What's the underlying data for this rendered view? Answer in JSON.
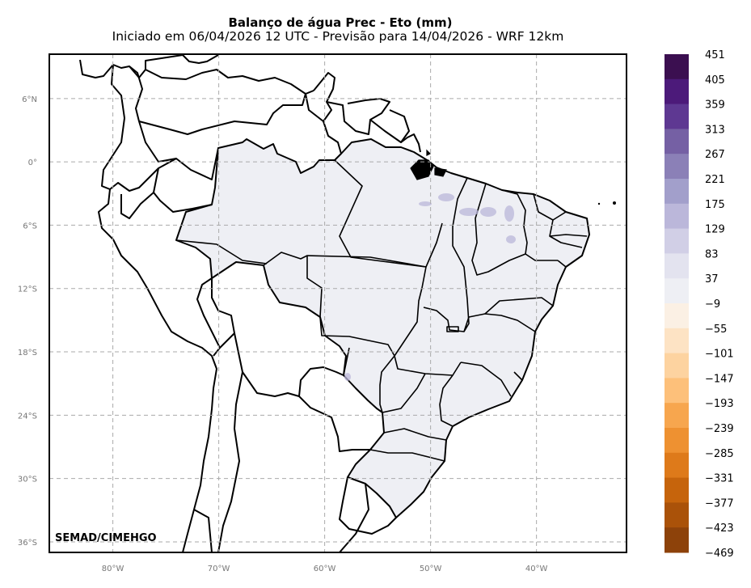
{
  "title": "Balanço de água Prec - Eto (mm)",
  "subtitle": "Iniciado em 06/04/2026 12 UTC - Previsão para 14/04/2026 - WRF 12km",
  "credit": "SEMAD/CIMEHGO",
  "map": {
    "lon_range": [
      -86,
      -31.5
    ],
    "lat_range": [
      -37,
      10.2
    ],
    "lat_ticks": [
      {
        "value": 6,
        "label": "6°N"
      },
      {
        "value": 0,
        "label": "0°"
      },
      {
        "value": -6,
        "label": "6°S"
      },
      {
        "value": -12,
        "label": "12°S"
      },
      {
        "value": -18,
        "label": "18°S"
      },
      {
        "value": -24,
        "label": "24°S"
      },
      {
        "value": -30,
        "label": "30°S"
      },
      {
        "value": -36,
        "label": "36°S"
      }
    ],
    "lon_ticks": [
      {
        "value": -80,
        "label": "80°W"
      },
      {
        "value": -70,
        "label": "70°W"
      },
      {
        "value": -60,
        "label": "60°W"
      },
      {
        "value": -50,
        "label": "50°W"
      },
      {
        "value": -40,
        "label": "40°W"
      }
    ],
    "grid": "dashed",
    "field_fill": "#eeeff4",
    "land_fill": "#ffffff",
    "border_color": "#000000"
  },
  "colorbar": {
    "labels": [
      "451",
      "405",
      "359",
      "313",
      "267",
      "221",
      "175",
      "129",
      "83",
      "37",
      "−9",
      "−55",
      "−101",
      "−147",
      "−193",
      "−239",
      "−285",
      "−331",
      "−377",
      "−423",
      "−469"
    ],
    "colors": [
      "#3b0f50",
      "#4c1a7a",
      "#5e3892",
      "#7560a4",
      "#8b80b7",
      "#a29fcb",
      "#bbb7da",
      "#d1cfe6",
      "#e3e3ef",
      "#eeeff4",
      "#fbf0e4",
      "#fde3c4",
      "#fdd3a0",
      "#fdc07a",
      "#f7a64e",
      "#ee9131",
      "#de7a1a",
      "#c6640c",
      "#aa5209",
      "#8d420a"
    ],
    "side": "right"
  }
}
